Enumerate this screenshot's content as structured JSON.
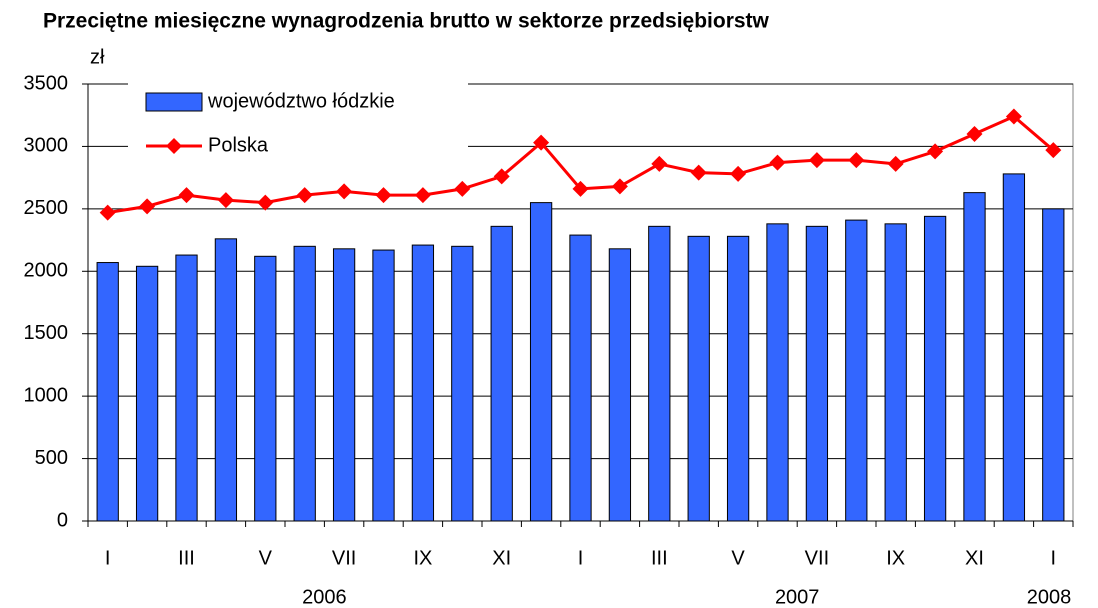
{
  "chart_data": {
    "type": "bar_line",
    "title": "Przeciętne miesięczne wynagrodzenia brutto w sektorze przedsiębiorstw",
    "y_axis_label": "zł",
    "categories": [
      "I",
      null,
      "III",
      null,
      "V",
      null,
      "VII",
      null,
      "IX",
      null,
      "XI",
      null,
      "I",
      null,
      "III",
      null,
      "V",
      null,
      "VII",
      null,
      "IX",
      null,
      "XI",
      null,
      "I"
    ],
    "x_groups": [
      {
        "label": "2006",
        "size": 12
      },
      {
        "label": "2007",
        "size": 12
      },
      {
        "label": "2008",
        "size": 1
      }
    ],
    "series": [
      {
        "name": "województwo łódzkie",
        "type": "bar",
        "color": "#3366ff",
        "values": [
          2070,
          2040,
          2130,
          2260,
          2120,
          2200,
          2180,
          2170,
          2210,
          2200,
          2360,
          2550,
          2290,
          2180,
          2360,
          2280,
          2280,
          2380,
          2360,
          2410,
          2380,
          2440,
          2630,
          2780,
          2500
        ]
      },
      {
        "name": "Polska",
        "type": "line",
        "color": "#ff0000",
        "values": [
          2470,
          2520,
          2610,
          2570,
          2550,
          2610,
          2640,
          2610,
          2610,
          2660,
          2760,
          3030,
          2660,
          2680,
          2860,
          2790,
          2780,
          2870,
          2890,
          2890,
          2860,
          2960,
          3100,
          3240,
          2970
        ]
      }
    ],
    "ylim": [
      0,
      3500
    ],
    "yticks": [
      0,
      500,
      1000,
      1500,
      2000,
      2500,
      3000,
      3500
    ],
    "grid": true,
    "legend": "top-left"
  }
}
